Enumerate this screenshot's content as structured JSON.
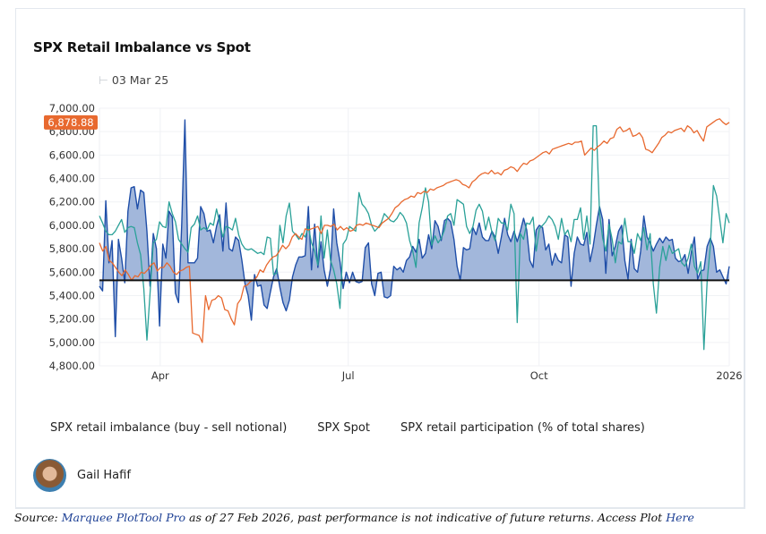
{
  "title": "SPX Retail Imbalance vs Spot",
  "date_label": "03 Mar 25",
  "legend": [
    {
      "label": "SPX retail imbalance (buy - sell notional)",
      "color": "#1f4ea8"
    },
    {
      "label": "SPX Spot",
      "color": "#e8692f"
    },
    {
      "label": "SPX retail participation (% of total shares)",
      "color": "#2aa198"
    }
  ],
  "author": {
    "name": "Gail Hafif"
  },
  "footer": {
    "prefix": "Source: ",
    "link1": "Marquee PlotTool Pro",
    "middle": " as of 27 Feb 2026, past performance is not indicative of future returns. Access Plot ",
    "link2": "Here"
  },
  "chart_data": {
    "type": "line",
    "title": "SPX Retail Imbalance vs Spot",
    "xlabel": "",
    "ylabel": "",
    "x_range": [
      "2025-03-03",
      "2026-01-01"
    ],
    "x_ticks": [
      "Apr",
      "Jul",
      "Oct",
      "2026"
    ],
    "y_ticks": [
      "4,800.00",
      "5,000.00",
      "5,200.00",
      "5,400.00",
      "5,600.00",
      "5,800.00",
      "6,000.00",
      "6,200.00",
      "6,400.00",
      "6,600.00",
      "6,800.00",
      "7,000.00"
    ],
    "ylim": [
      4800,
      7000
    ],
    "last_value_badge": "6,878.88",
    "baseline": 5530,
    "grid": true,
    "colors": {
      "imbalance": "#1f4ea8",
      "imbalance_fill": "#9db3d9",
      "spot": "#e8692f",
      "participation": "#2aa198",
      "baseline": "#111111"
    },
    "series": [
      {
        "name": "SPX Spot",
        "values": [
          5850,
          5780,
          5820,
          5700,
          5680,
          5640,
          5600,
          5570,
          5620,
          5580,
          5530,
          5570,
          5560,
          5600,
          5590,
          5620,
          5660,
          5680,
          5610,
          5640,
          5640,
          5680,
          5650,
          5600,
          5580,
          5610,
          5620,
          5640,
          5650,
          5080,
          5070,
          5060,
          5000,
          5400,
          5280,
          5360,
          5370,
          5400,
          5380,
          5280,
          5270,
          5200,
          5150,
          5330,
          5370,
          5480,
          5490,
          5520,
          5530,
          5560,
          5620,
          5600,
          5660,
          5700,
          5730,
          5740,
          5780,
          5830,
          5800,
          5830,
          5900,
          5930,
          5900,
          5880,
          5970,
          5960,
          5970,
          5980,
          5990,
          5930,
          6000,
          6000,
          5990,
          6010,
          5960,
          5990,
          5960,
          5980,
          5950,
          5960,
          6000,
          6010,
          6000,
          6020,
          6010,
          6000,
          5990,
          5980,
          6020,
          6040,
          6060,
          6100,
          6150,
          6170,
          6200,
          6220,
          6230,
          6250,
          6240,
          6280,
          6270,
          6290,
          6280,
          6310,
          6300,
          6320,
          6330,
          6340,
          6360,
          6370,
          6380,
          6390,
          6380,
          6350,
          6340,
          6320,
          6370,
          6390,
          6420,
          6440,
          6450,
          6440,
          6470,
          6440,
          6450,
          6430,
          6470,
          6480,
          6500,
          6490,
          6460,
          6500,
          6530,
          6520,
          6550,
          6560,
          6580,
          6600,
          6620,
          6630,
          6610,
          6650,
          6660,
          6670,
          6680,
          6690,
          6700,
          6690,
          6710,
          6710,
          6720,
          6600,
          6630,
          6660,
          6640,
          6670,
          6690,
          6720,
          6700,
          6740,
          6750,
          6820,
          6840,
          6800,
          6810,
          6830,
          6760,
          6770,
          6790,
          6750,
          6650,
          6640,
          6620,
          6660,
          6700,
          6750,
          6770,
          6800,
          6790,
          6810,
          6820,
          6830,
          6800,
          6850,
          6830,
          6790,
          6810,
          6760,
          6720,
          6840,
          6860,
          6880,
          6900,
          6910,
          6880,
          6860,
          6879
        ]
      },
      {
        "name": "SPX retail imbalance (buy - sell notional)",
        "values": [
          5480,
          5440,
          6210,
          5680,
          5870,
          5050,
          5880,
          5720,
          5510,
          6120,
          6320,
          6330,
          6140,
          6300,
          6280,
          5950,
          5480,
          5930,
          5800,
          5140,
          5840,
          5720,
          6120,
          6070,
          5420,
          5340,
          6000,
          6900,
          5680,
          5680,
          5680,
          5720,
          6160,
          6100,
          5950,
          5960,
          5850,
          5990,
          6090,
          5780,
          6190,
          5800,
          5780,
          5900,
          5870,
          5700,
          5500,
          5400,
          5190,
          5580,
          5480,
          5490,
          5320,
          5290,
          5430,
          5560,
          5630,
          5470,
          5340,
          5270,
          5360,
          5560,
          5660,
          5730,
          5730,
          5740,
          6160,
          5620,
          6010,
          5640,
          5860,
          5620,
          5480,
          5630,
          6140,
          5850,
          5690,
          5460,
          5600,
          5510,
          5600,
          5520,
          5510,
          5520,
          5810,
          5850,
          5500,
          5400,
          5590,
          5600,
          5390,
          5380,
          5400,
          5650,
          5620,
          5640,
          5600,
          5700,
          5730,
          5820,
          5770,
          5880,
          5720,
          5760,
          5920,
          5800,
          6040,
          5990,
          5870,
          6040,
          6060,
          6030,
          5880,
          5650,
          5530,
          5810,
          5790,
          5800,
          5980,
          5920,
          6020,
          5900,
          5870,
          5870,
          5950,
          5900,
          5760,
          5900,
          6060,
          5920,
          5860,
          5950,
          5860,
          5950,
          6060,
          5960,
          5700,
          5640,
          5960,
          6000,
          5980,
          5790,
          5840,
          5660,
          5760,
          5700,
          5680,
          5920,
          5900,
          5480,
          5760,
          5900,
          5840,
          5830,
          5940,
          5690,
          5820,
          6000,
          6160,
          6050,
          5590,
          6050,
          5740,
          5820,
          5950,
          6000,
          5700,
          5540,
          5880,
          5630,
          5600,
          5780,
          6080,
          5900,
          5850,
          5780,
          5840,
          5890,
          5850,
          5900,
          5870,
          5880,
          5720,
          5690,
          5700,
          5750,
          5590,
          5770,
          5900,
          5540,
          5610,
          5620,
          5820,
          5890,
          5820,
          5600,
          5620,
          5560,
          5500,
          5650
        ]
      },
      {
        "name": "SPX retail participation (% of total shares)",
        "values": [
          6080,
          6020,
          5950,
          5920,
          5920,
          5950,
          6000,
          6050,
          5940,
          5980,
          5990,
          5980,
          5850,
          5750,
          5460,
          5020,
          5420,
          5850,
          5880,
          6030,
          5990,
          5980,
          6200,
          6100,
          6030,
          5880,
          5840,
          5800,
          5770,
          5980,
          6010,
          6080,
          5960,
          5980,
          5960,
          6020,
          6000,
          6140,
          6020,
          5900,
          5990,
          5980,
          5960,
          6060,
          5920,
          5840,
          5800,
          5790,
          5800,
          5780,
          5760,
          5770,
          5750,
          5900,
          5890,
          5580,
          5590,
          6000,
          5850,
          6080,
          6190,
          5950,
          5920,
          5880,
          5930,
          5900,
          5990,
          5850,
          5780,
          5660,
          6080,
          5720,
          5960,
          5700,
          5620,
          5500,
          5290,
          5840,
          5880,
          5990,
          5970,
          5950,
          6280,
          6180,
          6150,
          6100,
          6000,
          5950,
          5980,
          6020,
          6100,
          6070,
          6040,
          6030,
          6060,
          6110,
          6080,
          6020,
          5870,
          5780,
          5640,
          6020,
          6150,
          6320,
          6200,
          5830,
          5910,
          5850,
          5890,
          5960,
          6080,
          6100,
          6000,
          6220,
          6200,
          6180,
          5990,
          5930,
          5990,
          6130,
          6180,
          6120,
          5960,
          6070,
          5940,
          5870,
          6060,
          6020,
          6020,
          5960,
          6180,
          6100,
          5170,
          5930,
          5880,
          6020,
          6010,
          6070,
          5780,
          5970,
          6000,
          6030,
          6080,
          6050,
          5990,
          5880,
          6060,
          5920,
          5960,
          5860,
          6050,
          6050,
          6150,
          5880,
          6080,
          5840,
          6850,
          6850,
          6100,
          5890,
          5780,
          6010,
          5880,
          5680,
          5860,
          5840,
          6060,
          5860,
          5860,
          5760,
          5930,
          5870,
          5980,
          5790,
          5930,
          5500,
          5250,
          5640,
          5820,
          5700,
          5830,
          5760,
          5780,
          5800,
          5680,
          5650,
          5720,
          5840,
          5650,
          5590,
          5690,
          4940,
          5520,
          5820,
          6340,
          6250,
          6050,
          5850,
          6100,
          6020
        ]
      }
    ]
  }
}
